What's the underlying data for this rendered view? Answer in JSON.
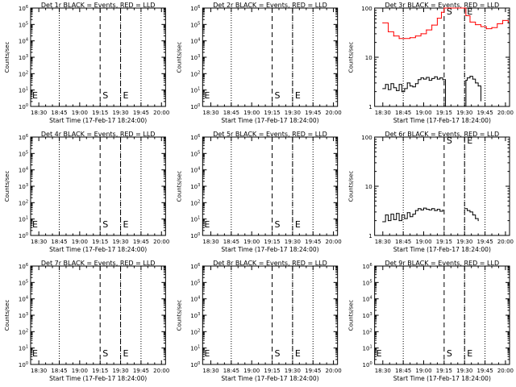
{
  "figure": {
    "background": "#ffffff",
    "foreground": "#000000",
    "red_series_color": "#ff0000",
    "xlabel": "Start Time (17-Feb-17 18:24:00)",
    "ylabel": "Counts/sec",
    "xtick_labels": [
      "18:30",
      "18:45",
      "19:00",
      "19:15",
      "19:30",
      "19:45",
      "20:00"
    ],
    "marker_start_label": "S",
    "marker_end_label": "E"
  },
  "chart_data": [
    {
      "type": "line",
      "title": "Det 1r BLACK = Events, RED = LLD",
      "xlabel": "Start Time (17-Feb-17 18:24:00)",
      "ylabel": "Counts/sec",
      "x_unit": "minutes after 18:24:00",
      "xlim": [
        0,
        99
      ],
      "yscale": "log",
      "ylim": [
        1,
        1000000
      ],
      "yticks": [
        "10^0",
        "10^1",
        "10^2",
        "10^3",
        "10^4",
        "10^5",
        "10^6"
      ],
      "dotted_lines_x": [
        21,
        66,
        81
      ],
      "dashed_lines_x": [
        51,
        66
      ],
      "markers": [
        {
          "label": "S",
          "x": 51
        },
        {
          "label": "E",
          "x": 66
        },
        {
          "label": "E",
          "x": 0
        }
      ],
      "series": []
    },
    {
      "type": "line",
      "title": "Det 2r BLACK = Events, RED = LLD",
      "xlabel": "Start Time (17-Feb-17 18:24:00)",
      "ylabel": "Counts/sec",
      "x_unit": "minutes after 18:24:00",
      "xlim": [
        0,
        99
      ],
      "yscale": "log",
      "ylim": [
        1,
        1000000
      ],
      "yticks": [
        "10^0",
        "10^1",
        "10^2",
        "10^3",
        "10^4",
        "10^5",
        "10^6"
      ],
      "dotted_lines_x": [
        21,
        66,
        81
      ],
      "dashed_lines_x": [
        51,
        66
      ],
      "markers": [
        {
          "label": "S",
          "x": 51
        },
        {
          "label": "E",
          "x": 66
        },
        {
          "label": "E",
          "x": 0
        }
      ],
      "series": []
    },
    {
      "type": "line",
      "title": "Det 3r BLACK = Events, RED = LLD",
      "xlabel": "Start Time (17-Feb-17 18:24:00)",
      "ylabel": "Counts/sec",
      "x_unit": "minutes after 18:24:00",
      "xlim": [
        0,
        99
      ],
      "yscale": "log",
      "ylim": [
        1,
        100
      ],
      "yticks": [
        "1",
        "10",
        "100"
      ],
      "dotted_lines_x": [
        21,
        66,
        81
      ],
      "dashed_lines_x": [
        51,
        66
      ],
      "markers": [
        {
          "label": "S",
          "x": 51
        },
        {
          "label": "E",
          "x": 66
        }
      ],
      "series": [
        {
          "color": "#ff0000",
          "x": [
            6,
            10,
            14,
            18,
            22,
            26,
            30,
            34,
            38,
            42,
            46,
            49,
            51,
            52,
            66,
            67,
            70,
            74,
            78,
            82,
            86,
            90,
            94,
            98
          ],
          "y": [
            50,
            33,
            27,
            24,
            24,
            25,
            27,
            30,
            36,
            45,
            62,
            82,
            100,
            100,
            100,
            70,
            52,
            46,
            42,
            38,
            40,
            48,
            56,
            52
          ]
        },
        {
          "color": "#000000",
          "x": [
            6,
            8,
            10,
            12,
            14,
            16,
            18,
            20,
            22,
            24,
            26,
            28,
            30,
            32,
            34,
            36,
            38,
            40,
            42,
            44,
            46,
            48,
            50,
            52
          ],
          "y": [
            2.3,
            2.8,
            2.2,
            2.9,
            2.4,
            2.1,
            2.8,
            2.0,
            2.3,
            3.0,
            2.6,
            2.5,
            2.9,
            3.5,
            3.8,
            3.6,
            3.9,
            3.4,
            3.7,
            4.0,
            3.6,
            3.8,
            3.5,
            1.0
          ]
        },
        {
          "color": "#000000",
          "x": [
            66,
            67,
            68,
            70,
            72,
            74,
            76,
            78
          ],
          "y": [
            1.0,
            3.4,
            3.8,
            4.1,
            3.6,
            3.0,
            2.6,
            1.3
          ]
        }
      ]
    },
    {
      "type": "line",
      "title": "Det 4r BLACK = Events, RED = LLD",
      "xlabel": "Start Time (17-Feb-17 18:24:00)",
      "ylabel": "Counts/sec",
      "x_unit": "minutes after 18:24:00",
      "xlim": [
        0,
        99
      ],
      "yscale": "log",
      "ylim": [
        1,
        1000000
      ],
      "yticks": [
        "10^0",
        "10^1",
        "10^2",
        "10^3",
        "10^4",
        "10^5",
        "10^6"
      ],
      "dotted_lines_x": [
        21,
        66,
        81
      ],
      "dashed_lines_x": [
        51,
        66
      ],
      "markers": [
        {
          "label": "S",
          "x": 51
        },
        {
          "label": "E",
          "x": 66
        },
        {
          "label": "E",
          "x": 0
        }
      ],
      "series": []
    },
    {
      "type": "line",
      "title": "Det 5r BLACK = Events, RED = LLD",
      "xlabel": "Start Time (17-Feb-17 18:24:00)",
      "ylabel": "Counts/sec",
      "x_unit": "minutes after 18:24:00",
      "xlim": [
        0,
        99
      ],
      "yscale": "log",
      "ylim": [
        1,
        1000000
      ],
      "yticks": [
        "10^0",
        "10^1",
        "10^2",
        "10^3",
        "10^4",
        "10^5",
        "10^6"
      ],
      "dotted_lines_x": [
        21,
        66,
        81
      ],
      "dashed_lines_x": [
        51,
        66
      ],
      "markers": [
        {
          "label": "S",
          "x": 51
        },
        {
          "label": "E",
          "x": 66
        },
        {
          "label": "E",
          "x": 0
        }
      ],
      "series": []
    },
    {
      "type": "line",
      "title": "Det 6r BLACK = Events, RED = LLD",
      "xlabel": "Start Time (17-Feb-17 18:24:00)",
      "ylabel": "Counts/sec",
      "x_unit": "minutes after 18:24:00",
      "xlim": [
        0,
        99
      ],
      "yscale": "log",
      "ylim": [
        1,
        100
      ],
      "yticks": [
        "1",
        "10",
        "100"
      ],
      "dotted_lines_x": [
        21,
        66,
        81
      ],
      "dashed_lines_x": [
        51,
        66
      ],
      "markers": [
        {
          "label": "S",
          "x": 51
        },
        {
          "label": "E",
          "x": 66
        }
      ],
      "series": [
        {
          "color": "#000000",
          "x": [
            6,
            8,
            10,
            12,
            14,
            16,
            18,
            20,
            22,
            24,
            26,
            28,
            30,
            32,
            34,
            36,
            38,
            40,
            42,
            44,
            46,
            48,
            50
          ],
          "y": [
            1.9,
            2.6,
            2.0,
            2.7,
            2.1,
            2.8,
            2.0,
            2.6,
            2.2,
            2.9,
            2.4,
            2.7,
            3.2,
            3.5,
            3.3,
            3.6,
            3.4,
            3.3,
            3.5,
            3.2,
            3.4,
            3.1,
            3.3
          ]
        },
        {
          "color": "#000000",
          "x": [
            66,
            68,
            70,
            72,
            74,
            76
          ],
          "y": [
            3.5,
            3.2,
            3.0,
            2.6,
            2.2,
            2.0
          ]
        }
      ]
    },
    {
      "type": "line",
      "title": "Det 7r BLACK = Events, RED = LLD",
      "xlabel": "Start Time (17-Feb-17 18:24:00)",
      "ylabel": "Counts/sec",
      "x_unit": "minutes after 18:24:00",
      "xlim": [
        0,
        99
      ],
      "yscale": "log",
      "ylim": [
        1,
        1000000
      ],
      "yticks": [
        "10^0",
        "10^1",
        "10^2",
        "10^3",
        "10^4",
        "10^5",
        "10^6"
      ],
      "dotted_lines_x": [
        21,
        66,
        81
      ],
      "dashed_lines_x": [
        51,
        66
      ],
      "markers": [
        {
          "label": "S",
          "x": 51
        },
        {
          "label": "E",
          "x": 66
        },
        {
          "label": "E",
          "x": 0
        }
      ],
      "series": []
    },
    {
      "type": "line",
      "title": "Det 8r BLACK = Events, RED = LLD",
      "xlabel": "Start Time (17-Feb-17 18:24:00)",
      "ylabel": "Counts/sec",
      "x_unit": "minutes after 18:24:00",
      "xlim": [
        0,
        99
      ],
      "yscale": "log",
      "ylim": [
        1,
        1000000
      ],
      "yticks": [
        "10^0",
        "10^1",
        "10^2",
        "10^3",
        "10^4",
        "10^5",
        "10^6"
      ],
      "dotted_lines_x": [
        21,
        66,
        81
      ],
      "dashed_lines_x": [
        51,
        66
      ],
      "markers": [
        {
          "label": "S",
          "x": 51
        },
        {
          "label": "E",
          "x": 66
        },
        {
          "label": "E",
          "x": 0
        }
      ],
      "series": []
    },
    {
      "type": "line",
      "title": "Det 9r BLACK = Events, RED = LLD",
      "xlabel": "Start Time (17-Feb-17 18:24:00)",
      "ylabel": "Counts/sec",
      "x_unit": "minutes after 18:24:00",
      "xlim": [
        0,
        99
      ],
      "yscale": "log",
      "ylim": [
        1,
        1000000
      ],
      "yticks": [
        "10^0",
        "10^1",
        "10^2",
        "10^3",
        "10^4",
        "10^5",
        "10^6"
      ],
      "dotted_lines_x": [
        21,
        66,
        81
      ],
      "dashed_lines_x": [
        51,
        66
      ],
      "markers": [
        {
          "label": "S",
          "x": 51
        },
        {
          "label": "E",
          "x": 66
        },
        {
          "label": "E",
          "x": 0
        }
      ],
      "series": []
    }
  ]
}
